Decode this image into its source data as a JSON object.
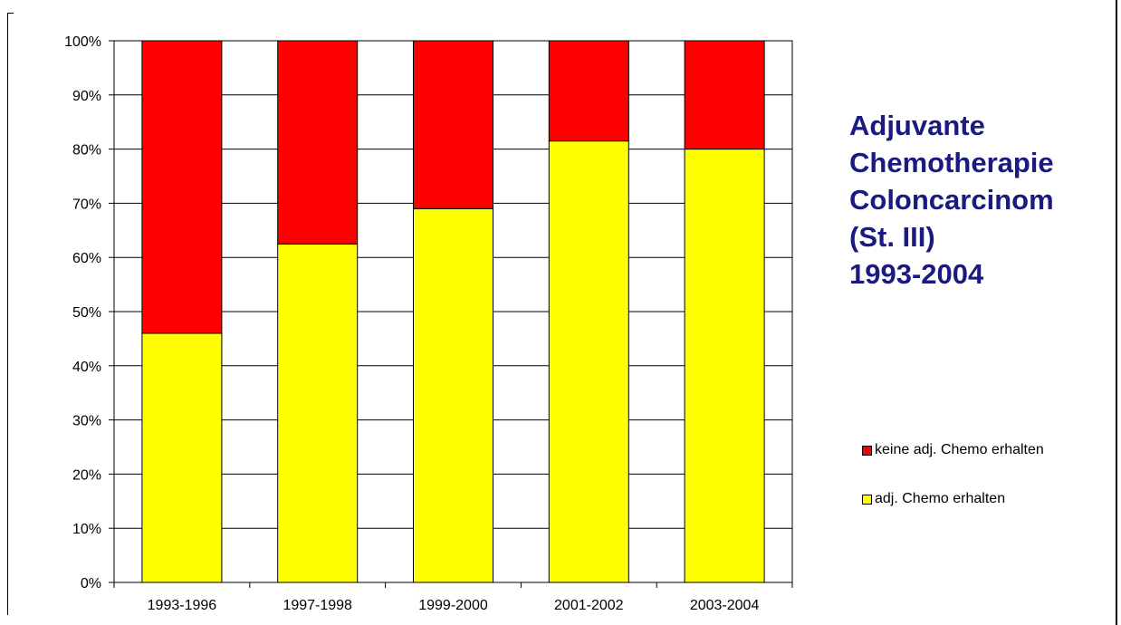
{
  "chart_data": {
    "type": "bar",
    "stacked": true,
    "title_lines": [
      "Adjuvante",
      "Chemotherapie",
      "Coloncarcinom",
      "(St. III)",
      "1993-2004"
    ],
    "categories": [
      "1993-1996",
      "1997-1998",
      "1999-2000",
      "2001-2002",
      "2003-2004"
    ],
    "series": [
      {
        "name": "adj. Chemo erhalten",
        "color": "#ffff00",
        "values": [
          46,
          62.5,
          69,
          81.5,
          80
        ]
      },
      {
        "name": "keine adj. Chemo erhalten",
        "color": "#ff0000",
        "values": [
          54,
          37.5,
          31,
          18.5,
          20
        ]
      }
    ],
    "ylim": [
      0,
      100
    ],
    "y_ticks": [
      "0%",
      "10%",
      "20%",
      "30%",
      "40%",
      "50%",
      "60%",
      "70%",
      "80%",
      "90%",
      "100%"
    ],
    "grid": true,
    "legend_position": "right"
  },
  "legend": {
    "items": [
      {
        "label": "keine adj. Chemo erhalten",
        "color": "#ff0000"
      },
      {
        "label": "adj. Chemo erhalten",
        "color": "#ffff00"
      }
    ]
  }
}
